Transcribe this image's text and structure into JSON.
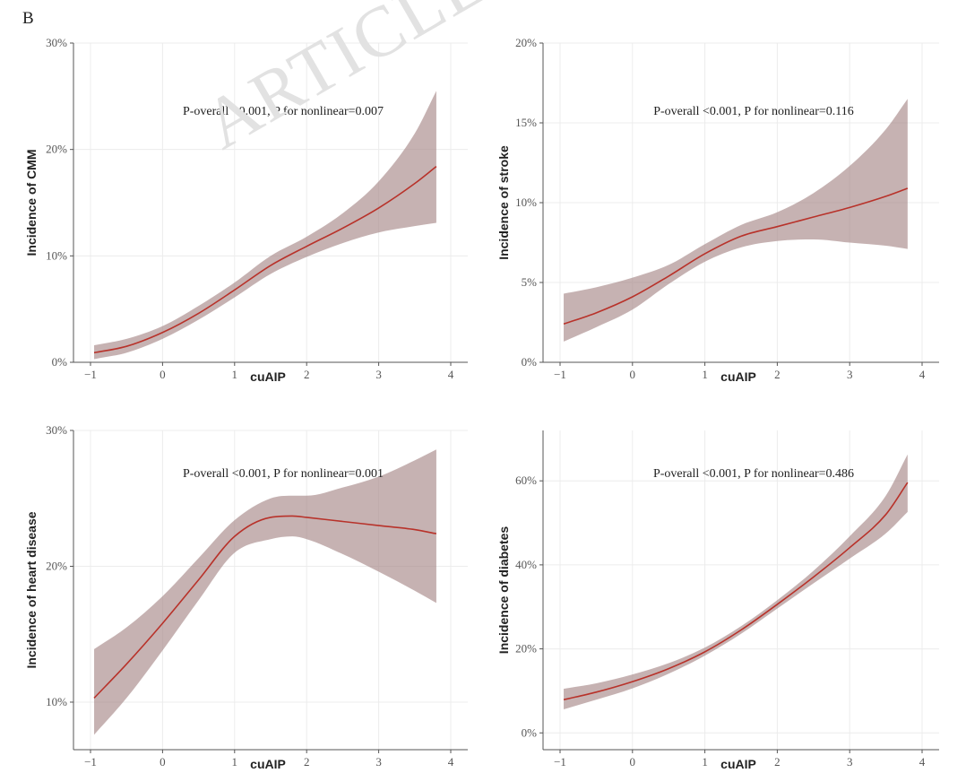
{
  "figure": {
    "panel_label": "B",
    "watermark": "ARTICLE"
  },
  "chart_data": [
    {
      "type": "line",
      "title": "",
      "annotation": "P-overall <0.001, P for nonlinear=0.007",
      "xlabel": "cuAIP",
      "ylabel": "Incidence of CMM",
      "xlim": [
        -1,
        4
      ],
      "ylim": [
        0,
        30
      ],
      "xticks": [
        -1,
        0,
        1,
        2,
        3,
        4
      ],
      "xtick_labels": [
        "−1",
        "0",
        "1",
        "2",
        "3",
        "4"
      ],
      "yticks": [
        0,
        10,
        20,
        30
      ],
      "ytick_labels": [
        "0%",
        "10%",
        "20%",
        "30%"
      ],
      "series": [
        {
          "name": "estimate",
          "x": [
            -0.95,
            -0.5,
            0,
            0.5,
            1,
            1.5,
            2,
            2.5,
            3,
            3.5,
            3.8
          ],
          "y": [
            0.9,
            1.5,
            2.8,
            4.6,
            6.8,
            9.1,
            10.9,
            12.6,
            14.5,
            16.8,
            18.4
          ],
          "lower": [
            0.3,
            0.9,
            2.2,
            4.0,
            6.1,
            8.3,
            9.9,
            11.2,
            12.2,
            12.8,
            13.1
          ],
          "upper": [
            1.6,
            2.2,
            3.4,
            5.3,
            7.5,
            10.0,
            11.8,
            14.0,
            17.0,
            21.5,
            25.5
          ]
        }
      ]
    },
    {
      "type": "line",
      "title": "",
      "annotation": "P-overall <0.001, P for nonlinear=0.116",
      "xlabel": "cuAIP",
      "ylabel": "Incidence of stroke",
      "xlim": [
        -1,
        4
      ],
      "ylim": [
        0,
        20
      ],
      "xticks": [
        -1,
        0,
        1,
        2,
        3,
        4
      ],
      "xtick_labels": [
        "−1",
        "0",
        "1",
        "2",
        "3",
        "4"
      ],
      "yticks": [
        0,
        5,
        10,
        15,
        20
      ],
      "ytick_labels": [
        "0%",
        "5%",
        "10%",
        "15%",
        "20%"
      ],
      "series": [
        {
          "name": "estimate",
          "x": [
            -0.95,
            -0.5,
            0,
            0.5,
            1,
            1.5,
            2,
            2.5,
            3,
            3.5,
            3.8
          ],
          "y": [
            2.4,
            3.1,
            4.1,
            5.4,
            6.8,
            7.9,
            8.5,
            9.1,
            9.7,
            10.4,
            10.9
          ],
          "lower": [
            1.3,
            2.2,
            3.3,
            4.9,
            6.3,
            7.2,
            7.6,
            7.7,
            7.5,
            7.3,
            7.1
          ],
          "upper": [
            4.3,
            4.7,
            5.3,
            6.1,
            7.4,
            8.6,
            9.4,
            10.6,
            12.3,
            14.6,
            16.5
          ]
        }
      ]
    },
    {
      "type": "line",
      "title": "",
      "annotation": "P-overall <0.001, P for nonlinear=0.001",
      "xlabel": "cuAIP",
      "ylabel": "Incidence of heart disease",
      "xlim": [
        -1,
        4
      ],
      "ylim": [
        6.5,
        30
      ],
      "xticks": [
        -1,
        0,
        1,
        2,
        3,
        4
      ],
      "xtick_labels": [
        "−1",
        "0",
        "1",
        "2",
        "3",
        "4"
      ],
      "yticks": [
        10,
        20,
        30
      ],
      "ytick_labels": [
        "10%",
        "20%",
        "30%"
      ],
      "series": [
        {
          "name": "estimate",
          "x": [
            -0.95,
            -0.5,
            0,
            0.5,
            1,
            1.5,
            1.8,
            2,
            2.5,
            3,
            3.5,
            3.8
          ],
          "y": [
            10.3,
            12.8,
            15.8,
            19.0,
            22.2,
            23.6,
            23.7,
            23.6,
            23.3,
            23.0,
            22.7,
            22.4
          ],
          "lower": [
            7.6,
            10.3,
            13.8,
            17.5,
            21.0,
            22.0,
            22.2,
            22.0,
            20.9,
            19.6,
            18.2,
            17.3
          ],
          "upper": [
            13.9,
            15.5,
            17.8,
            20.6,
            23.4,
            25.0,
            25.2,
            25.2,
            25.8,
            26.6,
            27.8,
            28.6
          ]
        }
      ]
    },
    {
      "type": "line",
      "title": "",
      "annotation": "P-overall <0.001, P for nonlinear=0.486",
      "xlabel": "cuAIP",
      "ylabel": "Incidence of diabetes",
      "xlim": [
        -1,
        4
      ],
      "ylim": [
        -4,
        72
      ],
      "xticks": [
        -1,
        0,
        1,
        2,
        3,
        4
      ],
      "xtick_labels": [
        "−1",
        "0",
        "1",
        "2",
        "3",
        "4"
      ],
      "yticks": [
        0,
        20,
        40,
        60
      ],
      "ytick_labels": [
        "0%",
        "20%",
        "40%",
        "60%"
      ],
      "series": [
        {
          "name": "estimate",
          "x": [
            -0.95,
            -0.5,
            0,
            0.5,
            1,
            1.5,
            2,
            2.5,
            3,
            3.5,
            3.8
          ],
          "y": [
            7.9,
            9.7,
            12.2,
            15.3,
            19.3,
            24.5,
            30.6,
            37.1,
            44.1,
            52.0,
            59.6
          ],
          "lower": [
            5.6,
            7.9,
            10.6,
            14.1,
            18.4,
            23.6,
            29.6,
            35.6,
            41.5,
            47.5,
            52.6
          ],
          "upper": [
            10.5,
            11.8,
            13.9,
            16.6,
            20.3,
            25.4,
            31.6,
            38.6,
            46.8,
            56.5,
            66.3
          ]
        }
      ]
    }
  ]
}
